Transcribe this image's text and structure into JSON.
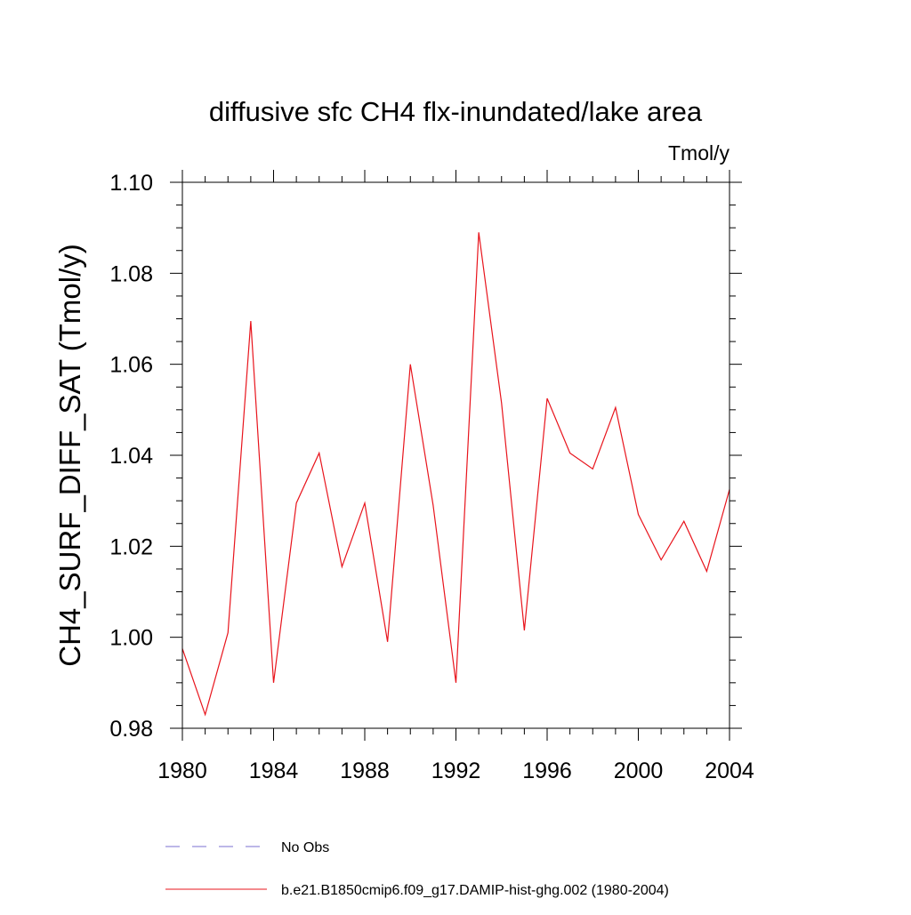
{
  "chart_data": {
    "type": "line",
    "title": "diffusive sfc CH4 flx-inundated/lake area",
    "units_label": "Tmol/y",
    "ylabel": "CH4_SURF_DIFF_SAT  (Tmol/y)",
    "xlabel": "",
    "xlim": [
      1980,
      2004
    ],
    "ylim": [
      0.98,
      1.1
    ],
    "x_ticks": [
      1980,
      1984,
      1988,
      1992,
      1996,
      2000,
      2004
    ],
    "x_tick_labels": [
      "1980",
      "1984",
      "1988",
      "1992",
      "1996",
      "2000",
      "2004"
    ],
    "y_ticks": [
      0.98,
      1.0,
      1.02,
      1.04,
      1.06,
      1.08,
      1.1
    ],
    "y_tick_labels": [
      "0.98",
      "1.00",
      "1.02",
      "1.04",
      "1.06",
      "1.08",
      "1.10"
    ],
    "x_minor_step": 1,
    "y_minor_step": 0.005,
    "grid": false,
    "legend_position": "bottom",
    "series": [
      {
        "name": "b.e21.B1850cmip6.f09_g17.DAMIP-hist-ghg.002 (1980-2004)",
        "color": "#e8141c",
        "style": "solid",
        "x": [
          1980,
          1981,
          1982,
          1983,
          1984,
          1985,
          1986,
          1987,
          1988,
          1989,
          1990,
          1991,
          1992,
          1993,
          1994,
          1995,
          1996,
          1997,
          1998,
          1999,
          2000,
          2001,
          2002,
          2003,
          2004
        ],
        "values": [
          0.9975,
          0.983,
          1.001,
          1.0695,
          0.99,
          1.0295,
          1.0405,
          1.0155,
          1.0295,
          0.999,
          1.06,
          1.029,
          0.99,
          1.089,
          1.0515,
          1.0015,
          1.0525,
          1.0405,
          1.037,
          1.0505,
          1.027,
          1.017,
          1.0255,
          1.0145,
          1.0325
        ]
      }
    ],
    "legend": [
      {
        "label": "No Obs",
        "color": "#7b6fd0",
        "style": "dashed"
      },
      {
        "label": "b.e21.B1850cmip6.f09_g17.DAMIP-hist-ghg.002 (1980-2004)",
        "color": "#e8141c",
        "style": "solid"
      }
    ]
  }
}
